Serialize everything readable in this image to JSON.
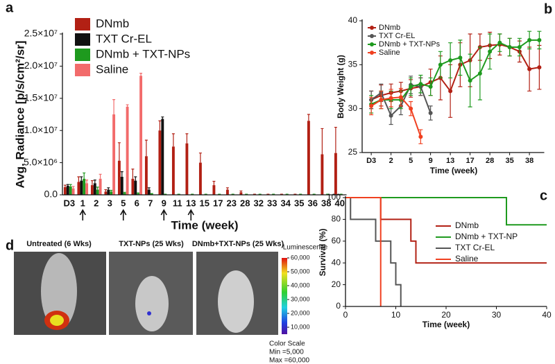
{
  "chart_data": [
    {
      "type": "bar",
      "panel": "a",
      "ylabel": "Avg. Radiance [p/s/cm²/sr]",
      "xlabel": "Time (week)",
      "categories": [
        "D3",
        "1",
        "2",
        "3",
        "5",
        "6",
        "7",
        "9",
        "11",
        "13",
        "15",
        "17",
        "23",
        "28",
        "32",
        "33",
        "34",
        "35",
        "36",
        "38",
        "40"
      ],
      "ylim": [
        0,
        25000000
      ],
      "yticks": [
        {
          "value": 0,
          "label": "0.0"
        },
        {
          "value": 5000000,
          "label": "5.0×10⁶"
        },
        {
          "value": 10000000,
          "label": "1.0×10⁷"
        },
        {
          "value": 15000000,
          "label": "1.5×10⁷"
        },
        {
          "value": 20000000,
          "label": "2.0×10⁷"
        },
        {
          "value": 25000000,
          "label": "2.5×10⁷"
        }
      ],
      "series": [
        {
          "name": "DNmb",
          "color": "#b22014",
          "values": [
            1200000,
            2000000,
            1500000,
            500000,
            5300000,
            2500000,
            6000000,
            10000000,
            7500000,
            8000000,
            5000000,
            1500000,
            800000,
            400000,
            100000,
            100000,
            100000,
            100000,
            11500000,
            6300000,
            6500000
          ],
          "errors": [
            300000,
            800000,
            700000,
            300000,
            2800000,
            1500000,
            2500000,
            1500000,
            2000000,
            1500000,
            1500000,
            600000,
            300000,
            200000,
            0,
            0,
            0,
            0,
            1000000,
            4000000,
            4000000
          ]
        },
        {
          "name": "TXT Cr-EL",
          "color": "#111111",
          "values": [
            1400000,
            2200000,
            1800000,
            800000,
            2800000,
            2200000,
            800000,
            11800000,
            null,
            null,
            null,
            null,
            null,
            null,
            null,
            null,
            null,
            null,
            null,
            null,
            null
          ],
          "errors": [
            200000,
            600000,
            500000,
            300000,
            800000,
            600000,
            300000,
            300000,
            null,
            null,
            null,
            null,
            null,
            null,
            null,
            null,
            null,
            null,
            null,
            null,
            null
          ]
        },
        {
          "name": "DNmb + TXT-NPs",
          "color": "#1e9a1e",
          "values": [
            1300000,
            2500000,
            800000,
            500000,
            300000,
            200000,
            200000,
            100000,
            100000,
            100000,
            100000,
            100000,
            100000,
            100000,
            100000,
            100000,
            100000,
            100000,
            100000,
            100000,
            100000
          ],
          "errors": [
            300000,
            900000,
            400000,
            200000,
            100000,
            100000,
            0,
            0,
            0,
            0,
            0,
            0,
            0,
            0,
            0,
            0,
            0,
            0,
            0,
            0,
            0
          ]
        },
        {
          "name": "Saline",
          "color": "#f26b6b",
          "values": [
            1000000,
            1800000,
            2500000,
            12500000,
            13700000,
            18500000,
            null,
            null,
            null,
            null,
            null,
            null,
            null,
            null,
            null,
            null,
            null,
            null,
            null,
            null,
            null
          ],
          "errors": [
            300000,
            500000,
            700000,
            2300000,
            300000,
            400000,
            null,
            null,
            null,
            null,
            null,
            null,
            null,
            null,
            null,
            null,
            null,
            null,
            null,
            null,
            null
          ]
        }
      ]
    },
    {
      "type": "line",
      "panel": "b",
      "ylabel": "Body Weight (g)",
      "xlabel": "Time (week)",
      "categories": [
        "D3",
        null,
        "2",
        null,
        "5",
        null,
        "9",
        null,
        "13",
        null,
        "17",
        null,
        "28",
        null,
        "35",
        null,
        "38",
        null
      ],
      "ylim": [
        25,
        40
      ],
      "yticks": [
        25,
        30,
        35,
        40
      ],
      "series": [
        {
          "name": "DNmb",
          "color": "#b22014",
          "values": [
            31,
            31.5,
            31.8,
            32,
            32.3,
            32.5,
            33,
            33.5,
            32,
            35,
            35.5,
            37,
            37.2,
            37.3,
            37,
            36.5,
            34.5,
            34.7
          ],
          "errors": [
            1,
            1.2,
            1,
            1,
            1,
            1,
            1.5,
            2.5,
            3,
            2.5,
            3,
            1.5,
            1.5,
            1.2,
            1,
            1.2,
            2.5,
            2.5
          ]
        },
        {
          "name": "TXT Cr-EL",
          "color": "#555555",
          "values": [
            31,
            31.8,
            29.2,
            30.3,
            32.7,
            32.5,
            29.5,
            null,
            null,
            null,
            null,
            null,
            null,
            null,
            null,
            null,
            null,
            null
          ],
          "errors": [
            1,
            1,
            1,
            1,
            1,
            1,
            0.8,
            null,
            null,
            null,
            null,
            null,
            null,
            null,
            null,
            null,
            null,
            null
          ]
        },
        {
          "name": "DNmb + TXT-NPs",
          "color": "#1e9a1e",
          "values": [
            30.5,
            31,
            31,
            31,
            32.5,
            32.8,
            32.5,
            35,
            35.5,
            35.8,
            33.2,
            34,
            36.5,
            37.5,
            37,
            37,
            37.8,
            37.8
          ],
          "errors": [
            1,
            1,
            1,
            1,
            1,
            1,
            1,
            1.5,
            2,
            2,
            3,
            3,
            2,
            1,
            1,
            1,
            1,
            1
          ]
        },
        {
          "name": "Saline",
          "color": "#f04020",
          "values": [
            30.3,
            31,
            31.2,
            31.3,
            30,
            26.8,
            null,
            null,
            null,
            null,
            null,
            null,
            null,
            null,
            null,
            null,
            null,
            null
          ],
          "errors": [
            1,
            1,
            1,
            1,
            0.8,
            0.8,
            null,
            null,
            null,
            null,
            null,
            null,
            null,
            null,
            null,
            null,
            null,
            null
          ]
        }
      ]
    },
    {
      "type": "step",
      "panel": "c",
      "ylabel": "Survival (%)",
      "xlabel": "Time (week)",
      "xlim": [
        0,
        40
      ],
      "xticks": [
        0,
        10,
        20,
        30,
        40
      ],
      "ylim": [
        0,
        100
      ],
      "yticks": [
        0,
        20,
        40,
        60,
        80,
        100
      ],
      "series": [
        {
          "name": "DNmb",
          "color": "#b22014",
          "x": [
            0,
            7,
            13,
            14,
            40
          ],
          "y": [
            100,
            80,
            60,
            40,
            40
          ]
        },
        {
          "name": "DNmb + TXT-NP",
          "color": "#1e9a1e",
          "x": [
            0,
            32,
            40
          ],
          "y": [
            100,
            75,
            75
          ]
        },
        {
          "name": "TXT Cr-EL",
          "color": "#555555",
          "x": [
            0,
            1,
            6,
            9,
            10,
            11
          ],
          "y": [
            100,
            80,
            60,
            40,
            20,
            0
          ]
        },
        {
          "name": "Saline",
          "color": "#f04020",
          "x": [
            0,
            7
          ],
          "y": [
            100,
            0
          ]
        }
      ]
    }
  ],
  "image_panel": {
    "panel": "d",
    "images": [
      "Untreated (6 Wks)",
      "TXT-NPs (25 Wks)",
      "DNmb+TXT-NPs (25 Wks)"
    ],
    "colorbar": {
      "title": "Luminescence",
      "lim": [
        5000,
        60000
      ],
      "ticks": [
        {
          "value": 60000,
          "label": "60,000"
        },
        {
          "value": 50000,
          "label": "50,000"
        },
        {
          "value": 40000,
          "label": "40,000"
        },
        {
          "value": 30000,
          "label": "30,000"
        },
        {
          "value": 20000,
          "label": "20,000"
        },
        {
          "value": 10000,
          "label": "10,000"
        }
      ]
    },
    "color_scale": "Color Scale",
    "min_label": "Min =5,000",
    "max_label": "Max =60,000"
  }
}
